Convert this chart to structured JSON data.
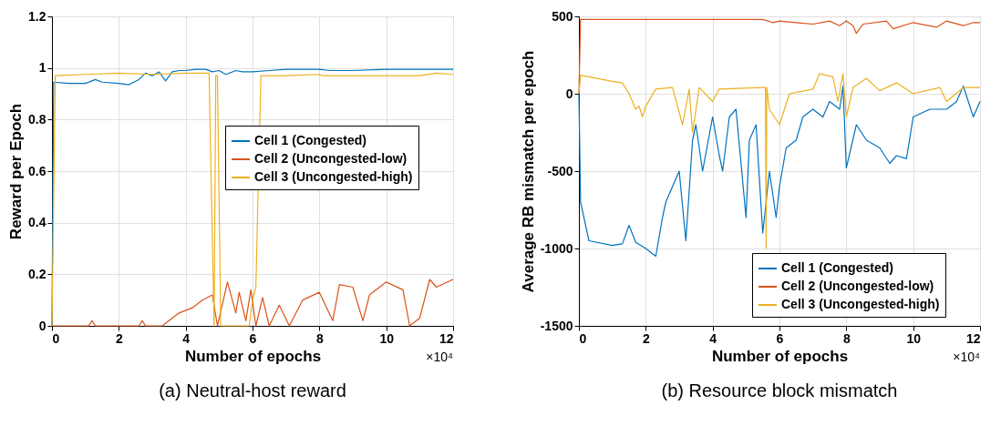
{
  "chart_data": [
    {
      "type": "line",
      "title": "(a) Neutral-host reward",
      "xlabel": "Number of epochs",
      "ylabel": "Reward per Epoch",
      "annotations": [
        "×10⁴"
      ],
      "xlim": [
        0,
        12
      ],
      "xticks": [
        0,
        2,
        4,
        6,
        8,
        10,
        12
      ],
      "ylim": [
        0,
        1.2
      ],
      "yticks": [
        0,
        0.2,
        0.4,
        0.6,
        0.8,
        1,
        1.2
      ],
      "grid": true,
      "legend": "right",
      "line_style": "solid",
      "series": [
        {
          "name": "Cell 1 (Congested)",
          "color": "#0072bd",
          "x": [
            0,
            0.05,
            0.5,
            1.0,
            1.3,
            1.5,
            2.0,
            2.3,
            2.6,
            2.8,
            3.0,
            3.2,
            3.4,
            3.6,
            3.8,
            4.0,
            4.3,
            4.6,
            4.8,
            5.0,
            5.2,
            5.5,
            5.7,
            6.0,
            6.5,
            7.0,
            8.0,
            8.3,
            9.0,
            10.0,
            11.0,
            12.0
          ],
          "values": [
            0,
            0.945,
            0.94,
            0.94,
            0.955,
            0.945,
            0.94,
            0.935,
            0.955,
            0.98,
            0.97,
            0.985,
            0.95,
            0.985,
            0.99,
            0.99,
            0.995,
            0.995,
            0.985,
            0.99,
            0.975,
            0.99,
            0.985,
            0.985,
            0.99,
            0.995,
            0.995,
            0.99,
            0.99,
            0.995,
            0.995,
            0.995
          ]
        },
        {
          "name": "Cell 2 (Uncongested-low)",
          "color": "#d95319",
          "x": [
            0,
            1.1,
            1.2,
            1.3,
            2.6,
            2.7,
            2.8,
            3.3,
            3.8,
            4.2,
            4.5,
            4.8,
            4.95,
            5.25,
            5.5,
            5.6,
            5.8,
            5.95,
            6.1,
            6.3,
            6.5,
            6.8,
            7.1,
            7.5,
            8.0,
            8.4,
            8.6,
            9.0,
            9.3,
            9.5,
            10.0,
            10.5,
            10.7,
            11.0,
            11.3,
            11.5,
            12.0
          ],
          "values": [
            0,
            0,
            0.02,
            0,
            0,
            0.02,
            0,
            0,
            0.05,
            0.07,
            0.1,
            0.12,
            0,
            0.17,
            0.05,
            0.13,
            0.02,
            0.14,
            0,
            0.11,
            0,
            0.08,
            0,
            0.1,
            0.13,
            0.02,
            0.16,
            0.15,
            0.02,
            0.12,
            0.17,
            0.14,
            0,
            0.03,
            0.18,
            0.15,
            0.18
          ]
        },
        {
          "name": "Cell 3 (Uncongested-high)",
          "color": "#edb120",
          "x": [
            0,
            0.1,
            1.0,
            2.0,
            3.0,
            4.0,
            4.7,
            4.85,
            4.9,
            4.95,
            5.05,
            5.9,
            6.0,
            6.1,
            6.25,
            7.0,
            8.0,
            8.1,
            9.0,
            10.0,
            11.0,
            11.5,
            12.0
          ],
          "values": [
            0,
            0.97,
            0.975,
            0.98,
            0.975,
            0.98,
            0.98,
            0,
            0.97,
            0.97,
            0,
            0,
            0.1,
            0.15,
            0.97,
            0.97,
            0.975,
            0.97,
            0.97,
            0.97,
            0.97,
            0.98,
            0.975
          ]
        }
      ]
    },
    {
      "type": "line",
      "title": "(b) Resource block mismatch",
      "xlabel": "Number of epochs",
      "ylabel": "Average RB mismatch per epoch",
      "annotations": [
        "×10⁴"
      ],
      "xlim": [
        0,
        12
      ],
      "xticks": [
        0,
        2,
        4,
        6,
        8,
        10,
        12
      ],
      "ylim": [
        -1500,
        500
      ],
      "yticks": [
        -1500,
        -1000,
        -500,
        0,
        500
      ],
      "grid": true,
      "legend": "bottom right",
      "line_style": "solid",
      "series": [
        {
          "name": "Cell 1 (Congested)",
          "color": "#0072bd",
          "x": [
            0,
            0.05,
            0.3,
            1.0,
            1.3,
            1.5,
            1.7,
            2.0,
            2.3,
            2.5,
            2.6,
            2.8,
            3.0,
            3.2,
            3.4,
            3.5,
            3.7,
            4.0,
            4.2,
            4.3,
            4.5,
            4.7,
            5.0,
            5.1,
            5.3,
            5.5,
            5.7,
            5.9,
            6.0,
            6.2,
            6.5,
            6.7,
            7.0,
            7.3,
            7.5,
            7.8,
            7.9,
            8.0,
            8.3,
            8.6,
            9.0,
            9.3,
            9.5,
            9.8,
            10.0,
            10.5,
            11.0,
            11.3,
            11.5,
            11.8,
            12.0
          ],
          "values": [
            0,
            -700,
            -950,
            -980,
            -970,
            -850,
            -960,
            -1000,
            -1050,
            -800,
            -700,
            -600,
            -500,
            -950,
            -300,
            -200,
            -500,
            -150,
            -400,
            -500,
            -150,
            -100,
            -800,
            -300,
            -200,
            -900,
            -500,
            -800,
            -600,
            -350,
            -300,
            -150,
            -100,
            -150,
            -50,
            -100,
            50,
            -480,
            -200,
            -300,
            -350,
            -450,
            -400,
            -420,
            -150,
            -100,
            -100,
            -50,
            50,
            -150,
            -50
          ]
        },
        {
          "name": "Cell 2 (Uncongested-low)",
          "color": "#d95319",
          "x": [
            0,
            0.05,
            1.0,
            3.0,
            5.5,
            5.8,
            6.0,
            6.5,
            7.0,
            7.5,
            7.8,
            8.0,
            8.2,
            8.3,
            8.5,
            9.2,
            9.4,
            10.0,
            10.7,
            11.0,
            11.5,
            11.8,
            12.0
          ],
          "values": [
            0,
            480,
            480,
            480,
            480,
            460,
            470,
            460,
            450,
            470,
            440,
            470,
            440,
            390,
            450,
            470,
            420,
            460,
            430,
            470,
            440,
            460,
            460
          ]
        },
        {
          "name": "Cell 3 (Uncongested-high)",
          "color": "#edb120",
          "x": [
            0,
            0.05,
            1.0,
            1.3,
            1.5,
            1.7,
            1.8,
            1.9,
            2.0,
            2.3,
            2.8,
            3.1,
            3.3,
            3.4,
            3.6,
            4.0,
            4.2,
            5.5,
            5.58,
            5.6,
            5.62,
            5.7,
            6.0,
            6.3,
            7.0,
            7.2,
            7.6,
            7.75,
            7.9,
            8.0,
            8.2,
            8.6,
            9.0,
            9.5,
            10.0,
            10.8,
            11.0,
            11.5,
            12.0
          ],
          "values": [
            0,
            120,
            80,
            70,
            0,
            -100,
            -80,
            -150,
            -80,
            30,
            40,
            -200,
            30,
            -250,
            40,
            -50,
            30,
            40,
            40,
            -1000,
            40,
            -100,
            -200,
            0,
            30,
            130,
            110,
            -50,
            130,
            -150,
            40,
            100,
            20,
            70,
            0,
            40,
            -50,
            40,
            40
          ]
        }
      ]
    }
  ]
}
